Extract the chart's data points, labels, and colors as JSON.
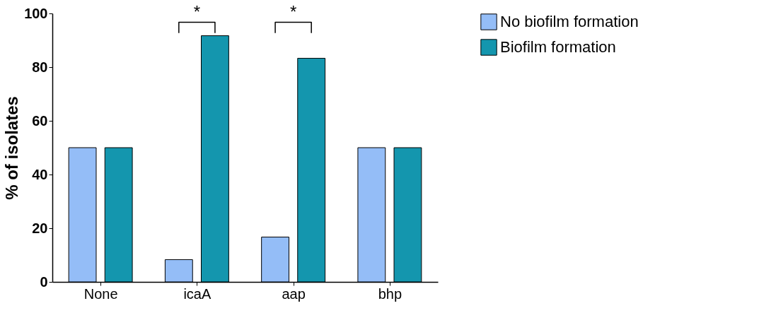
{
  "chart_data": {
    "type": "bar",
    "ylabel": "% of isolates",
    "categories": [
      "None",
      "icaA",
      "aap",
      "bhp"
    ],
    "series": [
      {
        "name": "No biofilm formation",
        "color": "#94bdf7",
        "values": [
          50,
          8.3,
          16.7,
          50
        ]
      },
      {
        "name": "Biofilm formation",
        "color": "#1496ae",
        "values": [
          50,
          91.7,
          83.3,
          50
        ]
      }
    ],
    "ylim": [
      0,
      100
    ],
    "yticks": [
      0,
      20,
      40,
      60,
      80,
      100
    ],
    "grid": false,
    "legend": "top right",
    "annotations": [
      "*",
      "*"
    ]
  }
}
